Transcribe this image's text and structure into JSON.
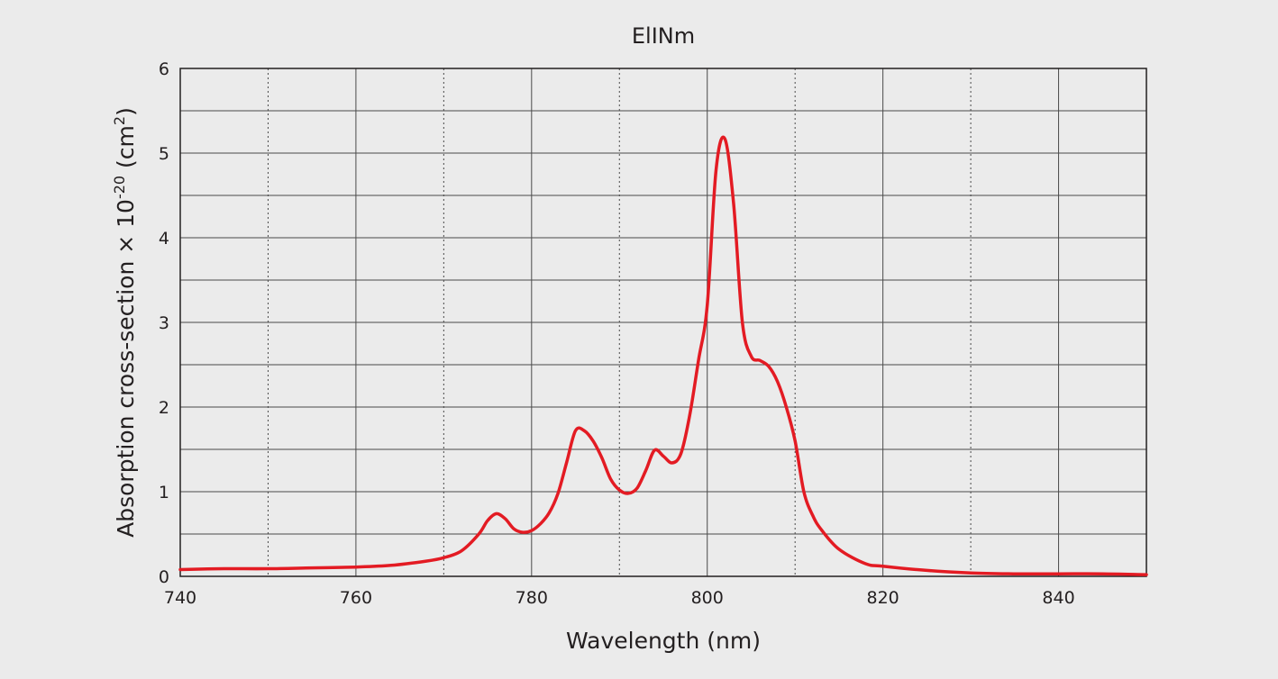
{
  "chart_data": {
    "type": "line",
    "title": "ElINm",
    "xlabel": "Wavelength (nm)",
    "ylabel_main": "Absorption cross-section × 10",
    "ylabel_exp": "-20",
    "ylabel_unit": " (cm",
    "ylabel_unit_exp": "2",
    "ylabel_close": ")",
    "xlim": [
      740,
      850
    ],
    "ylim": [
      0,
      6
    ],
    "x_ticks": [
      740,
      760,
      780,
      800,
      820,
      840
    ],
    "x_tick_labels": [
      "740",
      "760",
      "780",
      "800",
      "820",
      "840"
    ],
    "y_ticks": [
      0,
      1,
      2,
      3,
      4,
      5,
      6
    ],
    "y_tick_labels": [
      "0",
      "1",
      "2",
      "3",
      "4",
      "5",
      "6"
    ],
    "x_dotted_grid": [
      750,
      770,
      790,
      810,
      830
    ],
    "y_minor_grid": [
      0.5,
      1.5,
      2.5,
      3.5,
      4.5,
      5.5
    ],
    "grid": true,
    "series_color": "#e31b23",
    "series": [
      {
        "x": [
          740,
          745,
          750,
          755,
          760,
          764,
          768,
          770,
          772,
          774,
          775,
          776,
          777,
          778,
          779,
          780,
          781,
          782,
          783,
          784,
          785,
          786,
          787,
          788,
          789,
          790,
          791,
          792,
          793,
          794,
          795,
          796,
          797,
          798,
          799,
          800,
          801,
          802,
          803,
          804,
          805,
          806,
          807,
          808,
          809,
          810,
          811,
          812,
          813,
          815,
          818,
          820,
          825,
          830,
          835,
          840,
          845,
          850
        ],
        "y": [
          0.08,
          0.09,
          0.09,
          0.1,
          0.11,
          0.13,
          0.18,
          0.22,
          0.3,
          0.5,
          0.66,
          0.74,
          0.68,
          0.56,
          0.52,
          0.54,
          0.62,
          0.75,
          0.98,
          1.35,
          1.72,
          1.72,
          1.6,
          1.4,
          1.15,
          1.02,
          0.98,
          1.04,
          1.25,
          1.49,
          1.42,
          1.34,
          1.45,
          1.9,
          2.55,
          3.2,
          4.8,
          5.17,
          4.4,
          3.0,
          2.6,
          2.55,
          2.48,
          2.3,
          2.0,
          1.6,
          1.0,
          0.72,
          0.55,
          0.32,
          0.15,
          0.12,
          0.07,
          0.04,
          0.03,
          0.03,
          0.03,
          0.02
        ]
      }
    ]
  }
}
